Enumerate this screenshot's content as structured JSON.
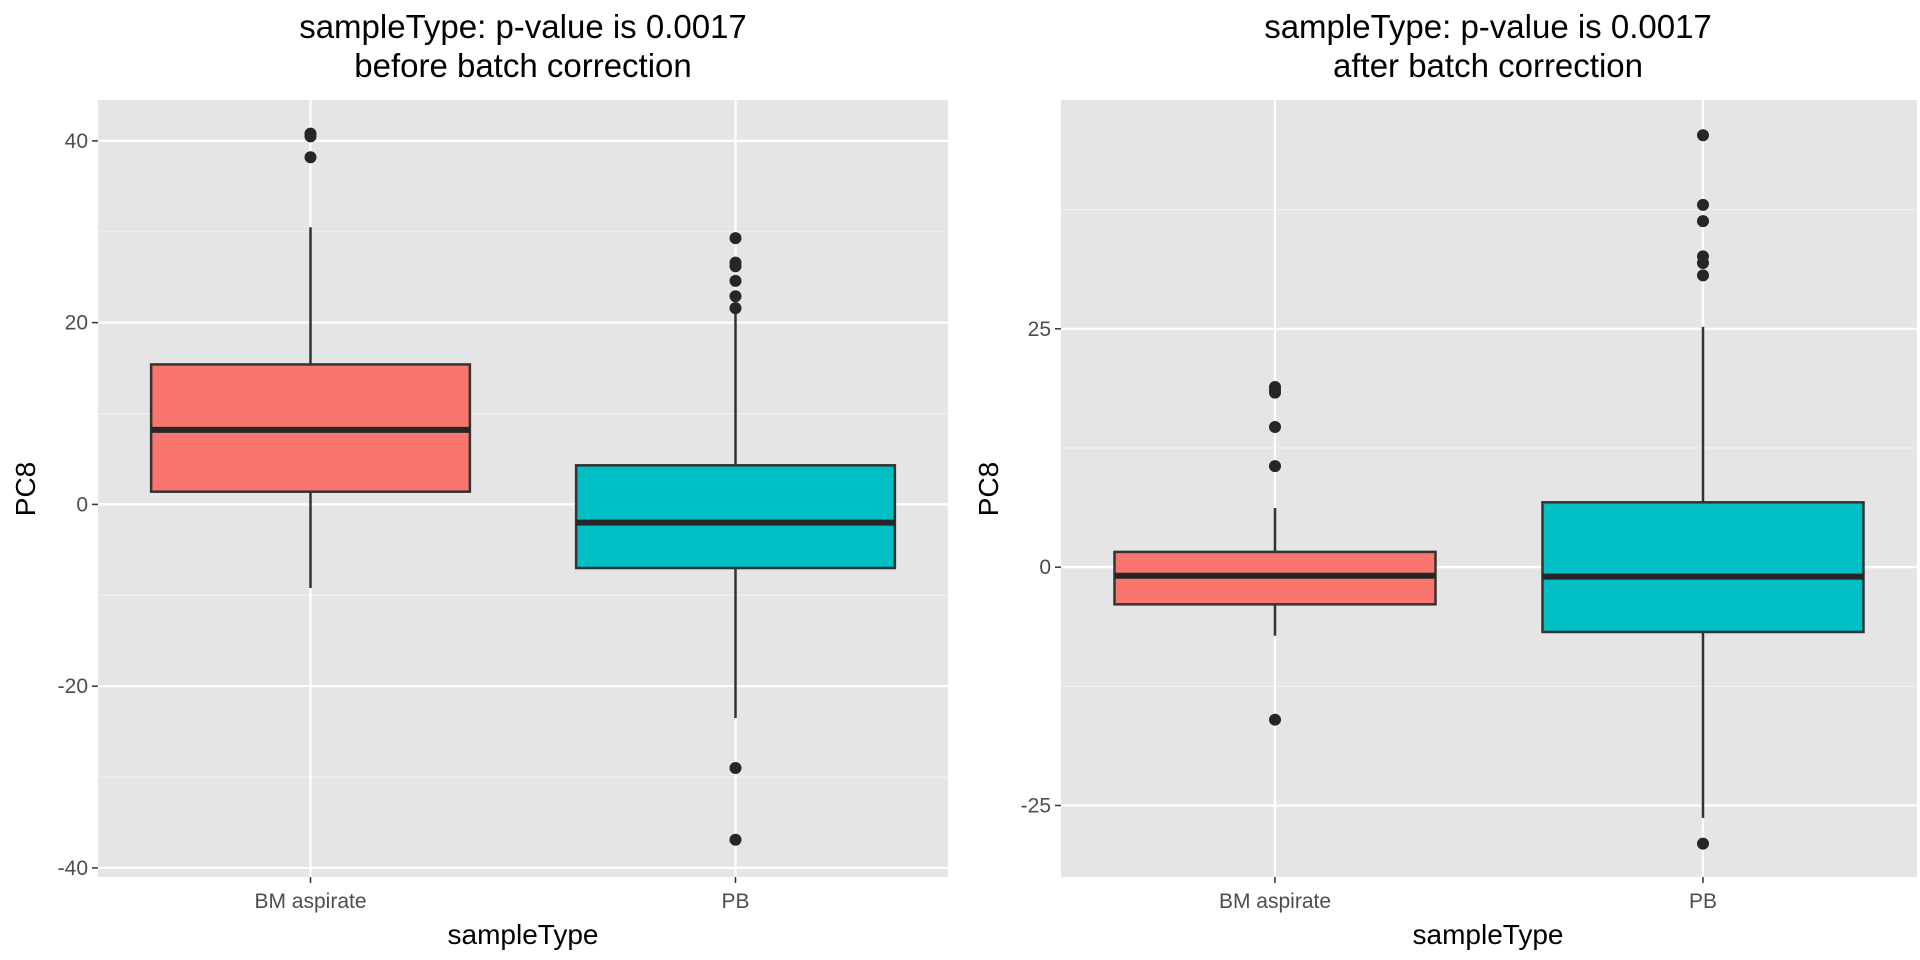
{
  "chart_data": [
    {
      "type": "boxplot",
      "title_line1": "sampleType: p-value is 0.0017",
      "title_line2": "before batch correction",
      "xlabel": "sampleType",
      "ylabel": "PC8",
      "categories": [
        "BM aspirate",
        "PB"
      ],
      "ylim": [
        -41,
        44.5
      ],
      "y_ticks": [
        -40,
        -20,
        0,
        20,
        40
      ],
      "y_tick_labels": [
        "-40",
        "-20",
        "0",
        "20",
        "40"
      ],
      "boxes": [
        {
          "category": "BM aspirate",
          "lower_whisker": -9.2,
          "q1": 1.4,
          "median": 8.2,
          "q3": 15.4,
          "upper_whisker": 30.5,
          "outliers": [
            38.2,
            40.5,
            40.8
          ],
          "fill": "#F8766D"
        },
        {
          "category": "PB",
          "lower_whisker": -23.5,
          "q1": -7.0,
          "median": -2.0,
          "q3": 4.3,
          "upper_whisker": 21.5,
          "outliers": [
            21.6,
            22.9,
            24.6,
            26.2,
            26.6,
            29.3,
            -29.0,
            -36.9
          ],
          "fill": "#00BFC4"
        }
      ]
    },
    {
      "type": "boxplot",
      "title_line1": "sampleType: p-value is 0.0017",
      "title_line2": "after batch correction",
      "xlabel": "sampleType",
      "ylabel": "PC8",
      "categories": [
        "BM aspirate",
        "PB"
      ],
      "ylim": [
        -32.5,
        49
      ],
      "y_ticks": [
        -25,
        0,
        25
      ],
      "y_tick_labels": [
        "-25",
        "0",
        "25"
      ],
      "boxes": [
        {
          "category": "BM aspirate",
          "lower_whisker": -7.2,
          "q1": -3.9,
          "median": -0.9,
          "q3": 1.6,
          "upper_whisker": 6.2,
          "outliers": [
            10.6,
            14.7,
            18.3,
            18.6,
            18.9,
            -16.0
          ],
          "fill": "#F8766D"
        },
        {
          "category": "PB",
          "lower_whisker": -26.3,
          "q1": -6.8,
          "median": -1.0,
          "q3": 6.8,
          "upper_whisker": 25.2,
          "outliers": [
            30.6,
            31.9,
            32.6,
            36.3,
            38.0,
            45.3,
            -29.0
          ],
          "fill": "#00BFC4"
        }
      ]
    }
  ]
}
